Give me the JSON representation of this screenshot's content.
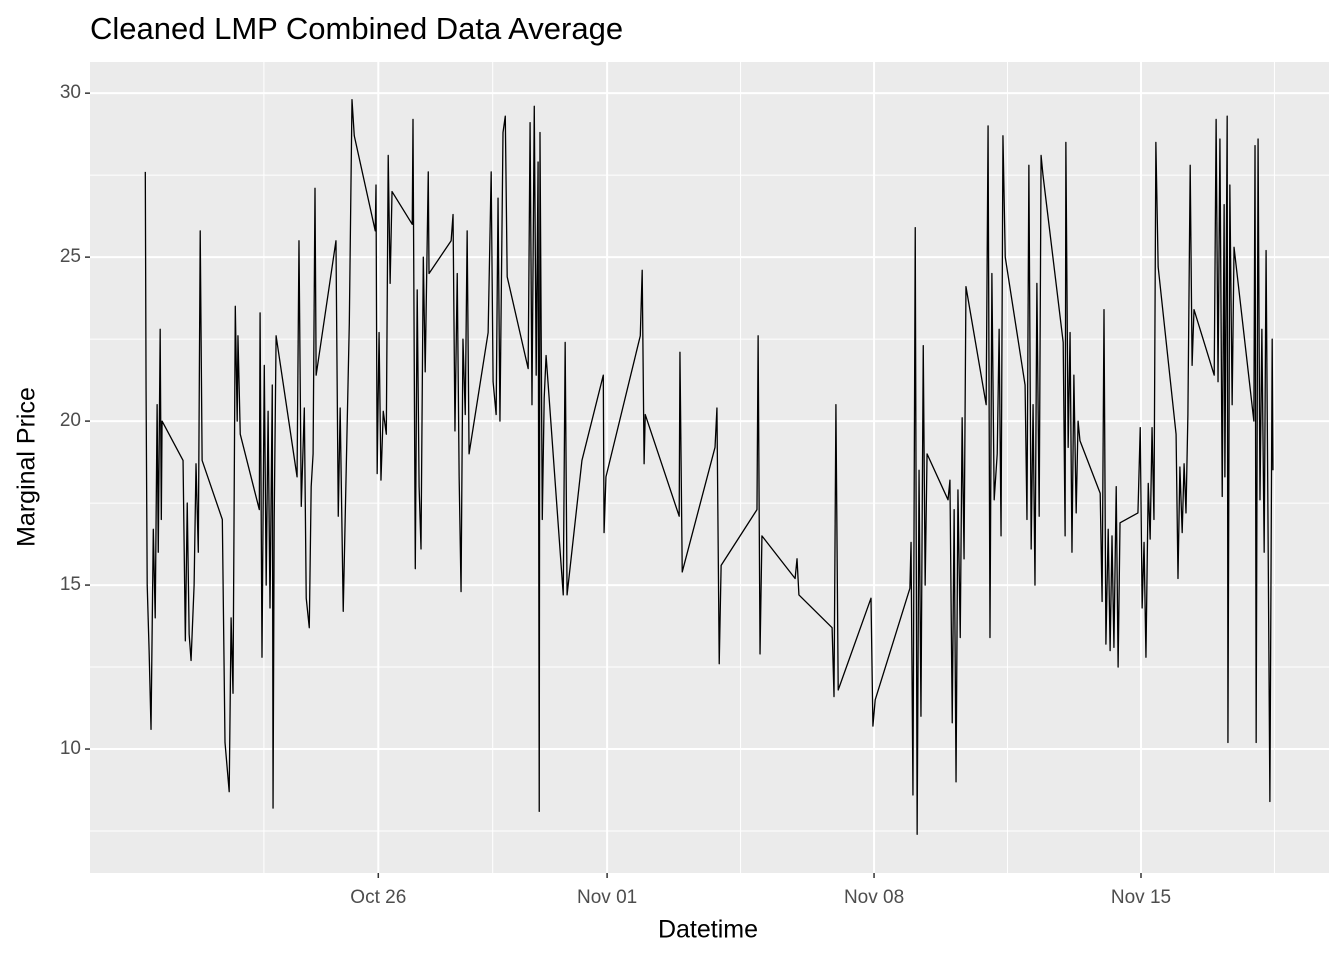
{
  "chart_data": {
    "type": "line",
    "title": "Cleaned LMP Combined Data Average",
    "x_label": "Datetime",
    "y_label": "Marginal Price",
    "color": "#000000",
    "grid": true,
    "xlim": [
      18.44,
      50.93
    ],
    "ylim": [
      6.22,
      30.95
    ],
    "xticks": [
      {
        "value": 26,
        "label": "Oct 26"
      },
      {
        "value": 32,
        "label": "Nov 01"
      },
      {
        "value": 39,
        "label": "Nov 08"
      },
      {
        "value": 46,
        "label": "Nov 15"
      }
    ],
    "yticks": [
      10,
      15,
      20,
      25,
      30
    ],
    "x": [
      19.89,
      19.91,
      19.94,
      19.99,
      20.04,
      20.1,
      20.15,
      20.2,
      20.23,
      20.28,
      20.31,
      20.33,
      20.88,
      20.94,
      20.99,
      21.04,
      21.09,
      21.17,
      21.22,
      21.28,
      21.33,
      21.38,
      21.91,
      21.98,
      22.09,
      22.14,
      22.19,
      22.25,
      22.3,
      22.32,
      22.38,
      22.88,
      22.9,
      22.95,
      23.01,
      23.06,
      23.11,
      23.16,
      23.22,
      23.24,
      23.27,
      23.32,
      23.87,
      23.92,
      23.98,
      24.06,
      24.11,
      24.19,
      24.24,
      24.29,
      24.34,
      24.37,
      24.89,
      24.95,
      25.0,
      25.08,
      25.16,
      25.24,
      25.31,
      25.37,
      25.92,
      25.94,
      25.97,
      26.02,
      26.07,
      26.13,
      26.21,
      26.26,
      26.31,
      26.36,
      26.89,
      26.91,
      26.97,
      27.02,
      27.07,
      27.12,
      27.18,
      27.23,
      27.31,
      27.33,
      27.91,
      27.96,
      28.01,
      28.07,
      28.12,
      28.17,
      28.22,
      28.28,
      28.33,
      28.38,
      28.88,
      28.96,
      29.01,
      29.09,
      29.14,
      29.19,
      29.27,
      29.33,
      29.38,
      29.93,
      29.98,
      30.03,
      30.09,
      30.14,
      30.19,
      30.22,
      30.24,
      30.3,
      30.35,
      30.4,
      30.85,
      30.9,
      30.95,
      31.34,
      31.9,
      31.92,
      31.97,
      32.87,
      32.92,
      32.97,
      33.0,
      33.89,
      33.91,
      33.97,
      34.83,
      34.88,
      34.94,
      34.99,
      35.93,
      35.96,
      36.01,
      36.06,
      36.93,
      36.98,
      37.03,
      37.9,
      37.95,
      38.0,
      38.06,
      38.92,
      38.97,
      39.03,
      39.94,
      39.97,
      40.02,
      40.08,
      40.13,
      40.18,
      40.23,
      40.29,
      40.34,
      40.39,
      40.94,
      40.99,
      41.05,
      41.1,
      41.15,
      41.2,
      41.26,
      41.31,
      41.36,
      41.41,
      41.94,
      41.99,
      42.04,
      42.09,
      42.15,
      42.23,
      42.28,
      42.33,
      42.38,
      42.44,
      42.96,
      43.01,
      43.06,
      43.12,
      43.17,
      43.22,
      43.27,
      43.33,
      43.38,
      43.43,
      43.96,
      44.01,
      44.03,
      44.09,
      44.14,
      44.19,
      44.24,
      44.3,
      44.35,
      44.4,
      44.93,
      44.98,
      45.03,
      45.08,
      45.14,
      45.19,
      45.24,
      45.29,
      45.35,
      45.4,
      45.45,
      45.92,
      45.98,
      46.03,
      46.08,
      46.13,
      46.19,
      46.24,
      46.29,
      46.34,
      46.39,
      46.45,
      46.92,
      46.97,
      47.02,
      47.08,
      47.13,
      47.18,
      47.23,
      47.29,
      47.34,
      47.39,
      47.92,
      47.97,
      48.02,
      48.07,
      48.13,
      48.18,
      48.2,
      48.26,
      48.28,
      48.33,
      48.39,
      48.44,
      48.96,
      48.99,
      49.02,
      49.07,
      49.12,
      49.17,
      49.23,
      49.28,
      49.33,
      49.38,
      49.44,
      49.46
    ],
    "values": [
      27.6,
      21,
      15,
      13,
      10.6,
      16.7,
      14,
      20.5,
      16,
      22.8,
      17,
      20,
      18.8,
      13.3,
      17.5,
      13.5,
      12.7,
      15,
      18.7,
      16,
      25.8,
      18.8,
      17,
      10.2,
      8.7,
      14,
      11.7,
      23.5,
      20,
      22.6,
      19.6,
      17.3,
      23.3,
      12.8,
      21.7,
      15,
      20.3,
      14.3,
      21.1,
      8.2,
      17,
      22.6,
      18.3,
      25.5,
      17.4,
      20.4,
      14.6,
      13.7,
      18,
      19,
      27.1,
      21.4,
      25.5,
      17.1,
      20.4,
      14.2,
      18.6,
      23,
      29.8,
      28.7,
      25.8,
      27.2,
      18.4,
      22.7,
      18.2,
      20.3,
      19.6,
      28.1,
      24.2,
      27,
      26,
      29.2,
      15.5,
      24,
      18,
      16.1,
      25,
      21.5,
      27.6,
      24.5,
      25.5,
      26.3,
      19.7,
      24.5,
      18.3,
      14.8,
      22.5,
      20.2,
      25.8,
      19,
      22.7,
      27.6,
      21.2,
      20.2,
      26.8,
      20,
      28.8,
      29.3,
      24.4,
      21.6,
      29.1,
      20.5,
      29.6,
      21.4,
      27.9,
      8.1,
      28.8,
      17,
      20.7,
      22,
      14.7,
      22.4,
      14.7,
      18.8,
      21.4,
      16.6,
      18.3,
      22.6,
      24.6,
      18.7,
      20.2,
      17.1,
      22.1,
      15.4,
      19.2,
      20.4,
      12.6,
      15.6,
      17.3,
      22.6,
      12.9,
      16.5,
      15.2,
      15.8,
      14.7,
      13.7,
      11.6,
      20.5,
      11.8,
      14.6,
      10.7,
      11.5,
      14.9,
      16.3,
      8.6,
      25.9,
      7.4,
      18.5,
      11,
      22.3,
      15,
      19,
      17.6,
      18.2,
      10.8,
      17.3,
      9,
      17.9,
      13.4,
      20.1,
      15.8,
      24.1,
      20.5,
      29,
      13.4,
      24.5,
      17.6,
      19,
      22.8,
      16.5,
      28.7,
      25,
      21.1,
      17,
      27.8,
      16.1,
      20.5,
      15,
      24.2,
      17.1,
      28.1,
      27.5,
      22.4,
      16.5,
      28.5,
      19.2,
      22.7,
      16,
      21.4,
      17.2,
      20,
      19.4,
      17.8,
      14.5,
      23.4,
      13.2,
      16.7,
      13,
      16.5,
      13.1,
      18,
      12.5,
      16.9,
      17.2,
      19.8,
      14.3,
      16.3,
      12.8,
      18.1,
      16.4,
      19.8,
      17,
      28.5,
      24.7,
      19.6,
      15.2,
      18.6,
      16.6,
      18.7,
      17.2,
      20.2,
      27.8,
      21.7,
      23.4,
      21.4,
      29.2,
      21.2,
      28.6,
      17.7,
      26.6,
      18.3,
      29.3,
      10.2,
      27.2,
      20.5,
      25.3,
      20,
      28.4,
      10.2,
      28.6,
      17.6,
      22.8,
      16,
      25.2,
      17,
      8.4,
      22.5,
      18.5
    ]
  }
}
